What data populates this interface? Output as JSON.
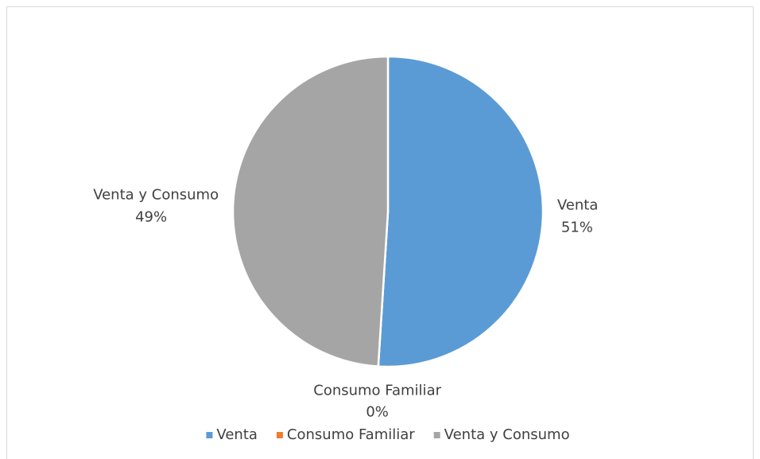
{
  "chart_data": {
    "type": "pie",
    "categories": [
      "Venta",
      "Consumo Familiar",
      "Venta y Consumo"
    ],
    "values": [
      51,
      0,
      49
    ],
    "value_labels": [
      "51%",
      "0%",
      "49%"
    ],
    "colors": [
      "#5b9bd5",
      "#ed7d31",
      "#a5a5a5"
    ],
    "legend": "bottom"
  }
}
